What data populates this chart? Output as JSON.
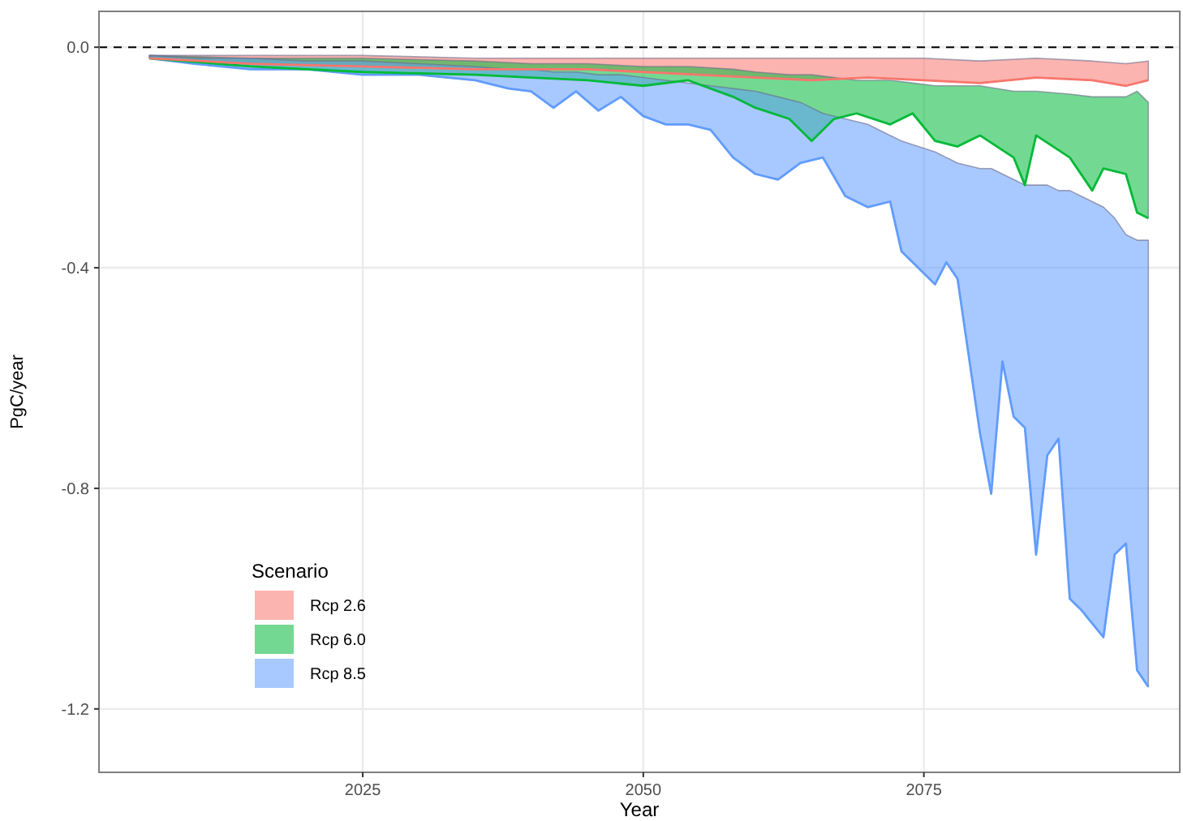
{
  "chart_data": {
    "type": "line",
    "xlabel": "Year",
    "ylabel": "PgC/year",
    "legend_title": "Scenario",
    "legend": "bottom left",
    "grid": true,
    "xlim": [
      2001.5,
      2097.8
    ],
    "xticks": [
      2025,
      2050,
      2075
    ],
    "ylim": [
      -1.315,
      0.065
    ],
    "yticks": [
      {
        "value": 0,
        "label": "0.0"
      },
      -0.4,
      -0.8,
      -1.2
    ],
    "ref_lines": [
      {
        "axis": "y",
        "value": 0,
        "line_style": "dashed",
        "color": "#000000"
      }
    ],
    "series": [
      {
        "name": "Rcp 2.6",
        "color": "#f8766d",
        "x": [
          2006,
          2015,
          2025,
          2035,
          2045,
          2050,
          2055,
          2060,
          2065,
          2070,
          2075,
          2080,
          2085,
          2090,
          2093,
          2095
        ],
        "values": [
          -0.02,
          -0.03,
          -0.035,
          -0.04,
          -0.04,
          -0.045,
          -0.05,
          -0.055,
          -0.06,
          -0.055,
          -0.06,
          -0.065,
          -0.055,
          -0.06,
          -0.07,
          -0.06
        ],
        "upper": [
          -0.015,
          -0.015,
          -0.015,
          -0.02,
          -0.02,
          -0.02,
          -0.02,
          -0.02,
          -0.02,
          -0.02,
          -0.02,
          -0.025,
          -0.02,
          -0.025,
          -0.03,
          -0.025
        ],
        "lower": [
          -0.02,
          -0.03,
          -0.035,
          -0.04,
          -0.04,
          -0.045,
          -0.05,
          -0.055,
          -0.06,
          -0.055,
          -0.06,
          -0.065,
          -0.055,
          -0.06,
          -0.07,
          -0.06
        ]
      },
      {
        "name": "Rcp 6.0",
        "color": "#00ba38",
        "x": [
          2006,
          2015,
          2025,
          2035,
          2040,
          2045,
          2050,
          2054,
          2058,
          2060,
          2063,
          2065,
          2067,
          2069,
          2072,
          2074,
          2076,
          2078,
          2080,
          2083,
          2084,
          2085,
          2088,
          2090,
          2091,
          2093,
          2094,
          2095
        ],
        "values": [
          -0.02,
          -0.035,
          -0.045,
          -0.05,
          -0.055,
          -0.06,
          -0.07,
          -0.06,
          -0.09,
          -0.11,
          -0.13,
          -0.17,
          -0.13,
          -0.12,
          -0.14,
          -0.12,
          -0.17,
          -0.18,
          -0.16,
          -0.2,
          -0.25,
          -0.16,
          -0.2,
          -0.26,
          -0.22,
          -0.23,
          -0.3,
          -0.31
        ],
        "upper": [
          -0.015,
          -0.02,
          -0.02,
          -0.025,
          -0.03,
          -0.03,
          -0.035,
          -0.035,
          -0.04,
          -0.045,
          -0.05,
          -0.05,
          -0.055,
          -0.06,
          -0.06,
          -0.065,
          -0.07,
          -0.07,
          -0.07,
          -0.08,
          -0.08,
          -0.08,
          -0.085,
          -0.09,
          -0.09,
          -0.09,
          -0.08,
          -0.1
        ],
        "lower": [
          -0.02,
          -0.035,
          -0.045,
          -0.05,
          -0.055,
          -0.06,
          -0.07,
          -0.06,
          -0.09,
          -0.11,
          -0.13,
          -0.17,
          -0.13,
          -0.12,
          -0.14,
          -0.12,
          -0.17,
          -0.18,
          -0.16,
          -0.2,
          -0.25,
          -0.16,
          -0.2,
          -0.26,
          -0.22,
          -0.23,
          -0.3,
          -0.31
        ]
      },
      {
        "name": "Rcp 8.5",
        "color": "#619cff",
        "x": [
          2006,
          2010,
          2015,
          2020,
          2025,
          2030,
          2035,
          2038,
          2040,
          2042,
          2044,
          2046,
          2048,
          2050,
          2052,
          2054,
          2056,
          2058,
          2060,
          2062,
          2064,
          2066,
          2068,
          2070,
          2072,
          2073,
          2076,
          2077,
          2078,
          2080,
          2081,
          2082,
          2083,
          2084,
          2085,
          2086,
          2087,
          2088,
          2089,
          2091,
          2092,
          2093,
          2094,
          2095
        ],
        "values": [
          -0.02,
          -0.03,
          -0.04,
          -0.04,
          -0.05,
          -0.05,
          -0.06,
          -0.075,
          -0.08,
          -0.11,
          -0.08,
          -0.115,
          -0.09,
          -0.125,
          -0.14,
          -0.14,
          -0.15,
          -0.2,
          -0.23,
          -0.24,
          -0.21,
          -0.2,
          -0.27,
          -0.29,
          -0.28,
          -0.37,
          -0.43,
          -0.39,
          -0.42,
          -0.7,
          -0.81,
          -0.57,
          -0.67,
          -0.69,
          -0.92,
          -0.74,
          -0.71,
          -1.0,
          -1.02,
          -1.07,
          -0.92,
          -0.9,
          -1.13,
          -1.16
        ],
        "upper": [
          -0.015,
          -0.02,
          -0.02,
          -0.025,
          -0.025,
          -0.03,
          -0.035,
          -0.04,
          -0.04,
          -0.045,
          -0.045,
          -0.05,
          -0.05,
          -0.055,
          -0.06,
          -0.065,
          -0.07,
          -0.075,
          -0.08,
          -0.09,
          -0.1,
          -0.12,
          -0.13,
          -0.14,
          -0.16,
          -0.17,
          -0.19,
          -0.2,
          -0.21,
          -0.22,
          -0.22,
          -0.23,
          -0.24,
          -0.25,
          -0.25,
          -0.25,
          -0.26,
          -0.26,
          -0.27,
          -0.29,
          -0.31,
          -0.34,
          -0.35,
          -0.35
        ],
        "lower": [
          -0.02,
          -0.03,
          -0.04,
          -0.04,
          -0.05,
          -0.05,
          -0.06,
          -0.075,
          -0.08,
          -0.11,
          -0.08,
          -0.115,
          -0.09,
          -0.125,
          -0.14,
          -0.14,
          -0.15,
          -0.2,
          -0.23,
          -0.24,
          -0.21,
          -0.2,
          -0.27,
          -0.29,
          -0.28,
          -0.37,
          -0.43,
          -0.39,
          -0.42,
          -0.7,
          -0.81,
          -0.57,
          -0.67,
          -0.69,
          -0.92,
          -0.74,
          -0.71,
          -1.0,
          -1.02,
          -1.07,
          -0.92,
          -0.9,
          -1.13,
          -1.16
        ]
      }
    ]
  }
}
